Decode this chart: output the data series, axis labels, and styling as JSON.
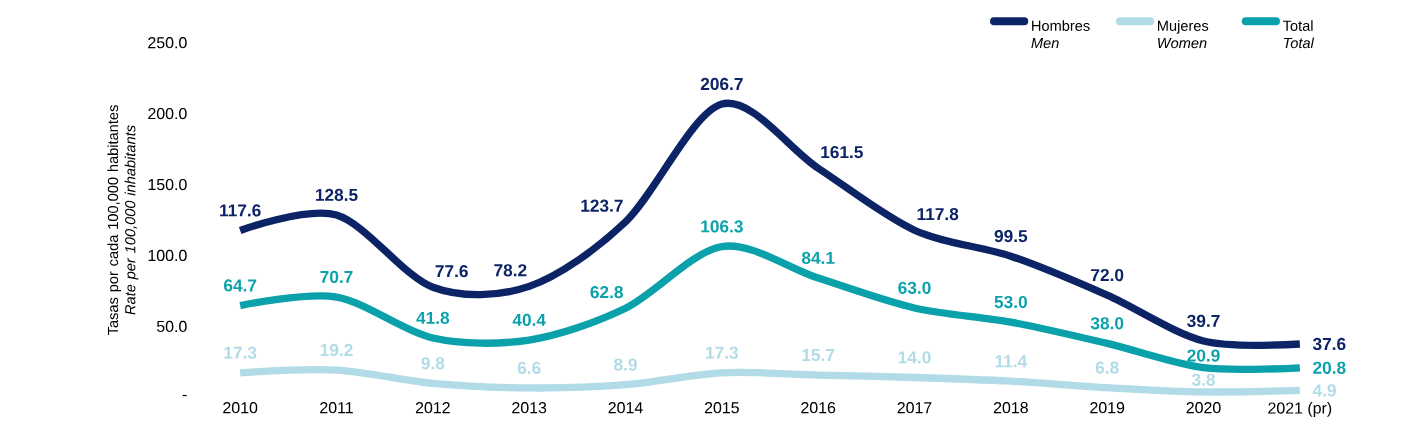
{
  "chart_data": {
    "type": "line",
    "ylabel": "Tasas por cada 100,000 habitantes *Rate per 100,000 inhabitants*",
    "categories": [
      "2010",
      "2011",
      "2012",
      "2013",
      "2014",
      "2015",
      "2016",
      "2017",
      "2018",
      "2019",
      "2020",
      "2021 (pr)"
    ],
    "series": [
      {
        "name": "Hombres *Men*",
        "color": "#0c2366",
        "values": [
          117.6,
          128.5,
          77.6,
          78.2,
          123.7,
          206.7,
          161.5,
          117.8,
          99.5,
          72.0,
          39.7,
          37.6
        ],
        "value_labels": [
          "117.6",
          "128.5",
          "77.6",
          "78.2",
          "123.7",
          "206.7",
          "161.5",
          "117.8",
          "99.5",
          "72.0",
          "39.7",
          "37.6"
        ]
      },
      {
        "name": "Mujeres *Women*",
        "color": "#b0dbe7",
        "values": [
          17.3,
          19.2,
          9.8,
          6.6,
          8.9,
          17.3,
          15.7,
          14.0,
          11.4,
          6.8,
          3.8,
          4.9
        ],
        "value_labels": [
          "17.3",
          "19.2",
          "9.8",
          "6.6",
          "8.9",
          "17.3",
          "15.7",
          "14.0",
          "11.4",
          "6.8",
          "3.8",
          "4.9"
        ]
      },
      {
        "name": "Total *Total*",
        "color": "#0aa1aa",
        "values": [
          64.7,
          70.7,
          41.8,
          40.4,
          62.8,
          106.3,
          84.1,
          63.0,
          53.0,
          38.0,
          20.9,
          20.8
        ],
        "value_labels": [
          "64.7",
          "70.7",
          "41.8",
          "40.4",
          "62.8",
          "106.3",
          "84.1",
          "63.0",
          "53.0",
          "38.0",
          "20.9",
          "20.8"
        ]
      }
    ],
    "ylim": [
      0,
      250
    ],
    "yticks": [
      {
        "value": 0,
        "label": "-"
      },
      {
        "value": 50,
        "label": "50.0"
      },
      {
        "value": 100,
        "label": "100.0"
      },
      {
        "value": 150,
        "label": "150.0"
      },
      {
        "value": 200,
        "label": "200.0"
      },
      {
        "value": 250,
        "label": "250.0"
      }
    ],
    "legend": "top right"
  }
}
